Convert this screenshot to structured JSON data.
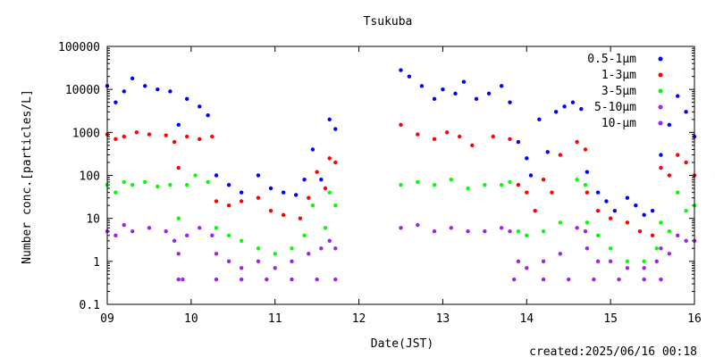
{
  "chart_data": {
    "type": "scatter",
    "title": "Tsukuba",
    "xlabel": "Date(JST)",
    "ylabel": "Number conc.[particles/L]",
    "footer": "created:2025/06/16 00:18",
    "x_ticks": [
      "09",
      "10",
      "11",
      "12",
      "13",
      "14",
      "15",
      "16"
    ],
    "y_ticks": [
      "0.1",
      "1",
      "10",
      "100",
      "1000",
      "10000",
      "100000"
    ],
    "x_range_days": [
      9,
      16
    ],
    "y_range": [
      0.1,
      100000
    ],
    "y_scale": "log",
    "grid": false,
    "legend_position": "top-right",
    "gap": [
      11.75,
      12.5
    ],
    "series": [
      {
        "name": "0.5-1μm",
        "color": "#0000ff",
        "points": [
          [
            9.0,
            12000
          ],
          [
            9.1,
            5000
          ],
          [
            9.2,
            9000
          ],
          [
            9.3,
            18000
          ],
          [
            9.45,
            12000
          ],
          [
            9.6,
            10000
          ],
          [
            9.75,
            9000
          ],
          [
            9.85,
            1500
          ],
          [
            9.95,
            6000
          ],
          [
            10.1,
            4000
          ],
          [
            10.2,
            2500
          ],
          [
            10.3,
            100
          ],
          [
            10.45,
            60
          ],
          [
            10.6,
            40
          ],
          [
            10.8,
            100
          ],
          [
            10.95,
            50
          ],
          [
            11.1,
            40
          ],
          [
            11.25,
            35
          ],
          [
            11.35,
            80
          ],
          [
            11.45,
            400
          ],
          [
            11.55,
            80
          ],
          [
            11.65,
            2000
          ],
          [
            11.72,
            1200
          ],
          [
            12.5,
            28000
          ],
          [
            12.6,
            20000
          ],
          [
            12.75,
            12000
          ],
          [
            12.9,
            6000
          ],
          [
            13.0,
            10000
          ],
          [
            13.15,
            8000
          ],
          [
            13.25,
            15000
          ],
          [
            13.4,
            6000
          ],
          [
            13.55,
            8000
          ],
          [
            13.7,
            12000
          ],
          [
            13.8,
            5000
          ],
          [
            13.9,
            600
          ],
          [
            14.0,
            250
          ],
          [
            14.05,
            100
          ],
          [
            14.15,
            2000
          ],
          [
            14.25,
            350
          ],
          [
            14.35,
            3000
          ],
          [
            14.45,
            4000
          ],
          [
            14.55,
            5000
          ],
          [
            14.65,
            3500
          ],
          [
            14.72,
            120
          ],
          [
            14.85,
            40
          ],
          [
            14.95,
            25
          ],
          [
            15.05,
            15
          ],
          [
            15.2,
            30
          ],
          [
            15.3,
            20
          ],
          [
            15.4,
            12
          ],
          [
            15.5,
            15
          ],
          [
            15.6,
            300
          ],
          [
            15.7,
            1500
          ],
          [
            15.8,
            7000
          ],
          [
            15.9,
            3000
          ],
          [
            16.0,
            800
          ]
        ]
      },
      {
        "name": "1-3μm",
        "color": "#ff0000",
        "points": [
          [
            9.0,
            900
          ],
          [
            9.1,
            700
          ],
          [
            9.2,
            800
          ],
          [
            9.35,
            1000
          ],
          [
            9.5,
            900
          ],
          [
            9.7,
            850
          ],
          [
            9.8,
            600
          ],
          [
            9.85,
            150
          ],
          [
            9.95,
            800
          ],
          [
            10.1,
            700
          ],
          [
            10.25,
            800
          ],
          [
            10.3,
            25
          ],
          [
            10.45,
            20
          ],
          [
            10.6,
            25
          ],
          [
            10.8,
            30
          ],
          [
            10.95,
            15
          ],
          [
            11.1,
            12
          ],
          [
            11.3,
            10
          ],
          [
            11.4,
            30
          ],
          [
            11.5,
            120
          ],
          [
            11.6,
            50
          ],
          [
            11.65,
            250
          ],
          [
            11.72,
            200
          ],
          [
            12.5,
            1500
          ],
          [
            12.7,
            900
          ],
          [
            12.9,
            700
          ],
          [
            13.05,
            1000
          ],
          [
            13.2,
            800
          ],
          [
            13.35,
            500
          ],
          [
            13.6,
            800
          ],
          [
            13.8,
            700
          ],
          [
            13.9,
            60
          ],
          [
            14.0,
            40
          ],
          [
            14.1,
            15
          ],
          [
            14.2,
            80
          ],
          [
            14.3,
            40
          ],
          [
            14.4,
            300
          ],
          [
            14.6,
            600
          ],
          [
            14.7,
            400
          ],
          [
            14.72,
            40
          ],
          [
            14.85,
            15
          ],
          [
            15.0,
            10
          ],
          [
            15.2,
            8
          ],
          [
            15.35,
            5
          ],
          [
            15.5,
            4
          ],
          [
            15.6,
            150
          ],
          [
            15.7,
            100
          ],
          [
            15.8,
            300
          ],
          [
            15.9,
            200
          ],
          [
            16.0,
            100
          ]
        ]
      },
      {
        "name": "3-5μm",
        "color": "#00ff00",
        "points": [
          [
            9.0,
            60
          ],
          [
            9.1,
            40
          ],
          [
            9.2,
            70
          ],
          [
            9.3,
            60
          ],
          [
            9.45,
            70
          ],
          [
            9.6,
            55
          ],
          [
            9.75,
            60
          ],
          [
            9.85,
            10
          ],
          [
            9.95,
            60
          ],
          [
            10.05,
            100
          ],
          [
            10.2,
            70
          ],
          [
            10.3,
            6
          ],
          [
            10.45,
            4
          ],
          [
            10.6,
            3
          ],
          [
            10.8,
            2
          ],
          [
            11.0,
            1.5
          ],
          [
            11.2,
            2
          ],
          [
            11.35,
            4
          ],
          [
            11.45,
            20
          ],
          [
            11.6,
            6
          ],
          [
            11.65,
            40
          ],
          [
            11.72,
            20
          ],
          [
            12.5,
            60
          ],
          [
            12.7,
            70
          ],
          [
            12.9,
            60
          ],
          [
            13.1,
            80
          ],
          [
            13.3,
            50
          ],
          [
            13.5,
            60
          ],
          [
            13.7,
            60
          ],
          [
            13.8,
            70
          ],
          [
            13.9,
            5
          ],
          [
            14.0,
            4
          ],
          [
            14.2,
            5
          ],
          [
            14.4,
            8
          ],
          [
            14.6,
            80
          ],
          [
            14.7,
            60
          ],
          [
            14.72,
            8
          ],
          [
            14.85,
            4
          ],
          [
            15.0,
            2
          ],
          [
            15.2,
            1
          ],
          [
            15.4,
            1
          ],
          [
            15.55,
            2
          ],
          [
            15.6,
            8
          ],
          [
            15.7,
            5
          ],
          [
            15.8,
            40
          ],
          [
            15.9,
            15
          ],
          [
            16.0,
            20
          ]
        ]
      },
      {
        "name": "5-10μm",
        "color": "#a020f0",
        "points": [
          [
            9.0,
            5
          ],
          [
            9.1,
            4
          ],
          [
            9.2,
            7
          ],
          [
            9.3,
            5
          ],
          [
            9.5,
            6
          ],
          [
            9.7,
            5
          ],
          [
            9.8,
            3
          ],
          [
            9.85,
            1.5
          ],
          [
            9.95,
            4
          ],
          [
            10.1,
            6
          ],
          [
            10.25,
            4
          ],
          [
            10.3,
            1.5
          ],
          [
            10.45,
            1
          ],
          [
            10.6,
            0.7
          ],
          [
            10.8,
            1
          ],
          [
            11.0,
            0.7
          ],
          [
            11.2,
            1
          ],
          [
            11.4,
            1.5
          ],
          [
            11.55,
            2
          ],
          [
            11.65,
            3
          ],
          [
            11.72,
            2
          ],
          [
            12.5,
            6
          ],
          [
            12.7,
            7
          ],
          [
            12.9,
            5
          ],
          [
            13.1,
            6
          ],
          [
            13.3,
            5
          ],
          [
            13.5,
            5
          ],
          [
            13.7,
            6
          ],
          [
            13.8,
            5
          ],
          [
            13.9,
            1
          ],
          [
            14.0,
            0.7
          ],
          [
            14.2,
            1
          ],
          [
            14.4,
            1.5
          ],
          [
            14.6,
            6
          ],
          [
            14.7,
            5
          ],
          [
            14.72,
            2
          ],
          [
            14.85,
            1
          ],
          [
            15.0,
            1
          ],
          [
            15.2,
            0.7
          ],
          [
            15.4,
            0.7
          ],
          [
            15.55,
            1
          ],
          [
            15.6,
            2
          ],
          [
            15.7,
            1.5
          ],
          [
            15.8,
            4
          ],
          [
            15.9,
            3
          ],
          [
            16.0,
            3
          ]
        ]
      },
      {
        "name": "10-μm",
        "color": "#a020f0",
        "points": [
          [
            9.85,
            0.38
          ],
          [
            9.9,
            0.38
          ],
          [
            10.3,
            0.38
          ],
          [
            10.6,
            0.38
          ],
          [
            10.9,
            0.38
          ],
          [
            11.2,
            0.38
          ],
          [
            11.5,
            0.38
          ],
          [
            11.72,
            0.38
          ],
          [
            13.85,
            0.38
          ],
          [
            14.2,
            0.38
          ],
          [
            14.5,
            0.38
          ],
          [
            14.8,
            0.38
          ],
          [
            15.1,
            0.38
          ],
          [
            15.4,
            0.38
          ],
          [
            15.6,
            0.38
          ]
        ]
      }
    ]
  }
}
